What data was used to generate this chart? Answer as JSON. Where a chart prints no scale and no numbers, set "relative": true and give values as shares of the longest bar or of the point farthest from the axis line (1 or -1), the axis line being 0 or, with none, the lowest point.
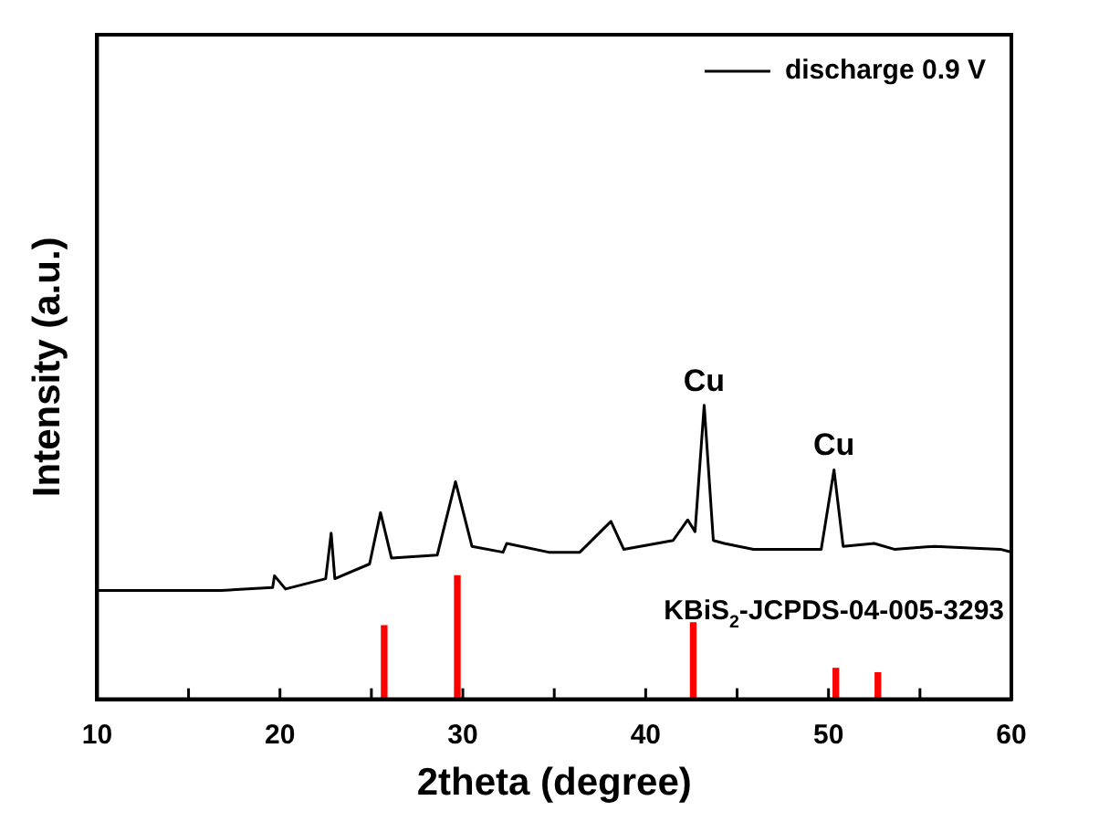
{
  "chart_data": {
    "type": "line",
    "xlabel": "2theta (degree)",
    "ylabel": "Intensity (a.u.)",
    "relative": true,
    "xlim": [
      10,
      60
    ],
    "xticks": [
      10,
      {
        "value": 15,
        "label": null
      },
      20,
      {
        "value": 25,
        "label": null
      },
      30,
      {
        "value": 35,
        "label": null
      },
      40,
      {
        "value": 45,
        "label": null
      },
      50,
      {
        "value": 55,
        "label": null
      },
      60
    ],
    "legend": "top right",
    "grid": false,
    "annotations": [
      {
        "text": "Cu",
        "x": 43.2,
        "y": 1.0
      },
      {
        "text": "Cu",
        "x": 50.3,
        "y": 0.78
      }
    ],
    "series": [
      {
        "name": "discharge 0.9 V",
        "color": "#000000",
        "x": [
          10,
          16.8,
          19.6,
          19.7,
          20.3,
          22.5,
          22.8,
          23.0,
          24.9,
          25.5,
          26.1,
          28.6,
          29.6,
          30.5,
          32.2,
          32.4,
          34.7,
          36.4,
          38.1,
          38.8,
          41.5,
          42.3,
          42.7,
          43.2,
          43.7,
          44.3,
          45.9,
          49.6,
          50.3,
          50.8,
          52.5,
          53.6,
          55.8,
          59.4,
          60
        ],
        "values": [
          0.37,
          0.37,
          0.38,
          0.42,
          0.375,
          0.41,
          0.565,
          0.41,
          0.46,
          0.635,
          0.48,
          0.49,
          0.74,
          0.52,
          0.5,
          0.53,
          0.5,
          0.5,
          0.605,
          0.51,
          0.54,
          0.61,
          0.57,
          1.0,
          0.54,
          0.53,
          0.51,
          0.51,
          0.78,
          0.52,
          0.53,
          0.51,
          0.52,
          0.51,
          0.5
        ]
      },
      {
        "name": "KBiS$_{2}$-JCPDS-04-005-3293",
        "type": "bar",
        "color": "#ff0000",
        "x": [
          25.7,
          29.7,
          42.6,
          50.4,
          52.7
        ],
        "values": [
          0.25,
          0.42,
          0.26,
          0.105,
          0.09
        ]
      }
    ]
  }
}
